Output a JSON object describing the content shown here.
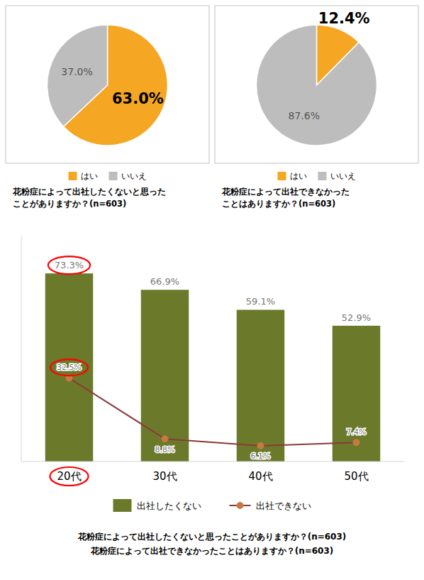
{
  "chart_data": [
    {
      "type": "pie",
      "title": "花粉症によって出社したくないと思った\nことがありますか？(n=603)",
      "categories": [
        "はい",
        "いいえ"
      ],
      "values": [
        63.0,
        37.0
      ],
      "value_labels": [
        "63.0%",
        "37.0%"
      ],
      "colors": [
        "#F5A623",
        "#BDBDBD"
      ],
      "data_labels": true,
      "legend": "bottom"
    },
    {
      "type": "pie",
      "title": "花粉症によって出社できなかった\nことはありますか？(n=603)",
      "categories": [
        "はい",
        "いいえ"
      ],
      "values": [
        12.4,
        87.6
      ],
      "value_labels": [
        "12.4%",
        "87.6%"
      ],
      "colors": [
        "#F5A623",
        "#BDBDBD"
      ],
      "data_labels": true,
      "legend": "bottom"
    },
    {
      "type": "bar",
      "title": "花粉症によって出社したくないと思ったことがありますか？(n=603)\n花粉症によって出社できなかったことはありますか？(n=603)",
      "categories": [
        "20代",
        "30代",
        "40代",
        "50代"
      ],
      "series": [
        {
          "name": "出社したくない",
          "type": "bar",
          "color": "#6B7A2A",
          "values": [
            73.3,
            66.9,
            59.1,
            52.9
          ],
          "value_labels": [
            "73.3%",
            "66.9%",
            "59.1%",
            "52.9%"
          ]
        },
        {
          "name": "出社できない",
          "type": "line",
          "color": "#8B3A3A",
          "colors": [
            "#C87941",
            "#C87941",
            "#C87941",
            "#C87941"
          ],
          "marker": "circle",
          "values": [
            32.5,
            8.8,
            6.1,
            7.4
          ],
          "value_labels": [
            "32.5%",
            "8.8%",
            "6.1%",
            "7.4%"
          ]
        }
      ],
      "ylim": [
        0,
        88
      ],
      "tick_labels": "x",
      "grid": false,
      "data_labels": true,
      "legend": "bottom"
    }
  ]
}
